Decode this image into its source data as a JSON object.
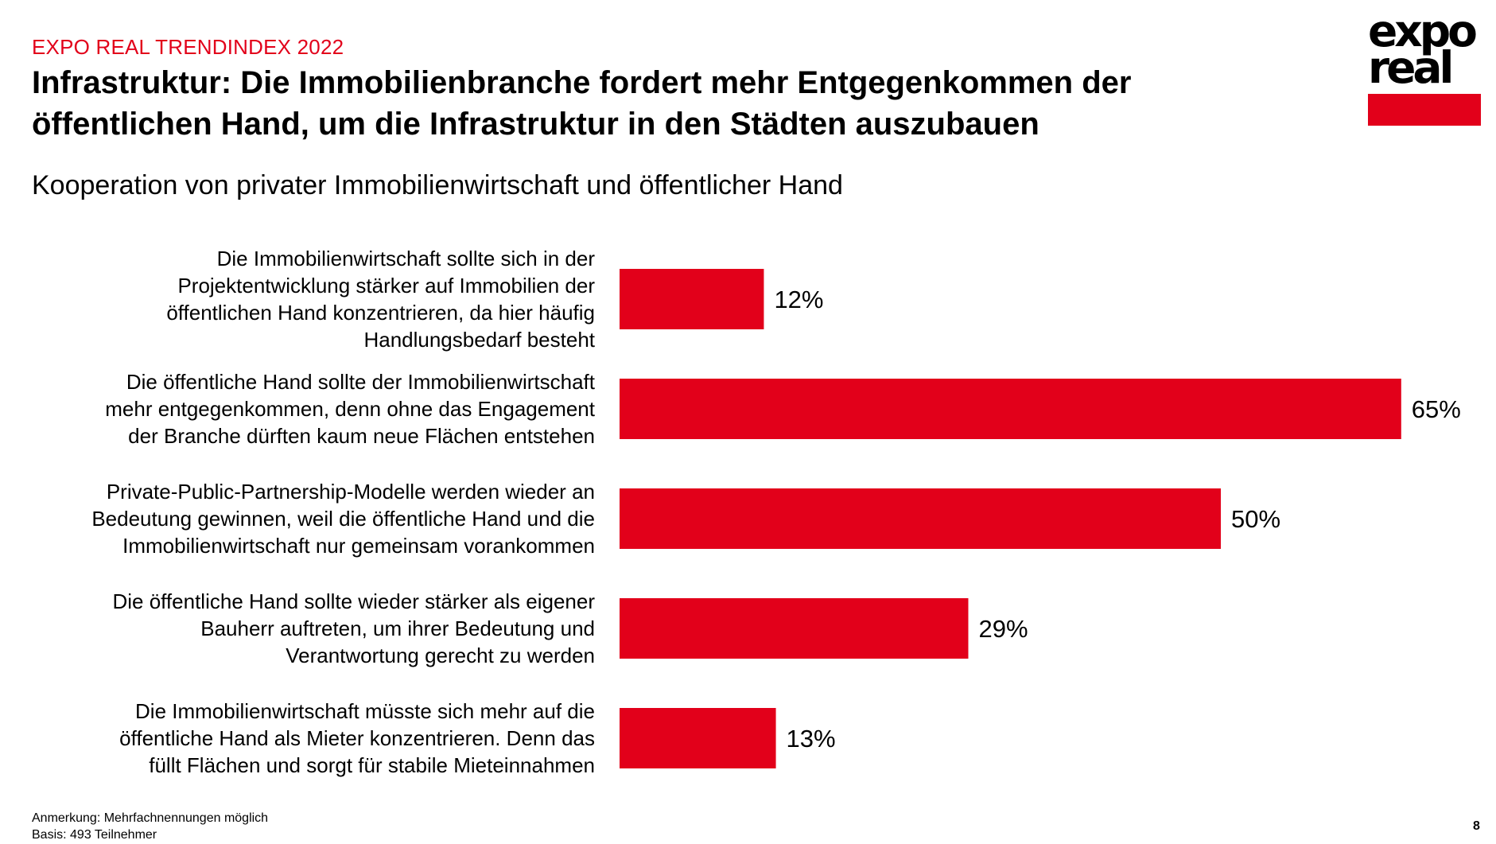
{
  "header": {
    "kicker": "EXPO REAL TRENDINDEX 2022",
    "headline": "Infrastruktur: Die Immobilienbranche fordert mehr Entgegenkommen der öffentlichen Hand, um die Infrastruktur in den Städten auszubauen"
  },
  "logo": {
    "line1": "expo",
    "line2": "real",
    "accent_color": "#e2001a"
  },
  "colors": {
    "bar": "#e2001a",
    "kicker": "#e2001a",
    "text": "#000000"
  },
  "chart_data": {
    "type": "bar",
    "orientation": "horizontal",
    "title": "Kooperation von privater Immobilienwirtschaft und öffentlicher Hand",
    "xlim": [
      0,
      70
    ],
    "grid": false,
    "legend": "none",
    "unit": "%",
    "categories": [
      [
        "Die Immobilienwirtschaft sollte sich in der",
        "Projektentwicklung stärker auf Immobilien der",
        "öffentlichen Hand konzentrieren, da hier häufig",
        "Handlungsbedarf besteht"
      ],
      [
        "Die öffentliche Hand sollte der Immobilienwirtschaft",
        "mehr entgegenkommen, denn ohne das Engagement",
        "der Branche dürften kaum neue Flächen entstehen"
      ],
      [
        "Private-Public-Partnership-Modelle werden wieder an",
        "Bedeutung gewinnen, weil die öffentliche Hand und die",
        "Immobilienwirtschaft nur gemeinsam vorankommen"
      ],
      [
        "Die öffentliche Hand sollte wieder stärker als eigener",
        "Bauherr auftreten, um ihrer Bedeutung und",
        "Verantwortung gerecht zu werden"
      ],
      [
        "Die Immobilienwirtschaft müsste sich mehr auf die",
        "öffentliche Hand als Mieter konzentrieren. Denn das",
        "füllt Flächen und sorgt für stabile Mieteinnahmen"
      ]
    ],
    "values": [
      12,
      65,
      50,
      29,
      13
    ],
    "data_labels": [
      "12%",
      "65%",
      "50%",
      "29%",
      "13%"
    ]
  },
  "footnote": {
    "note": "Anmerkung: Mehrfachnennungen möglich",
    "base": "Basis: 493 Teilnehmer"
  },
  "page_number": "8"
}
